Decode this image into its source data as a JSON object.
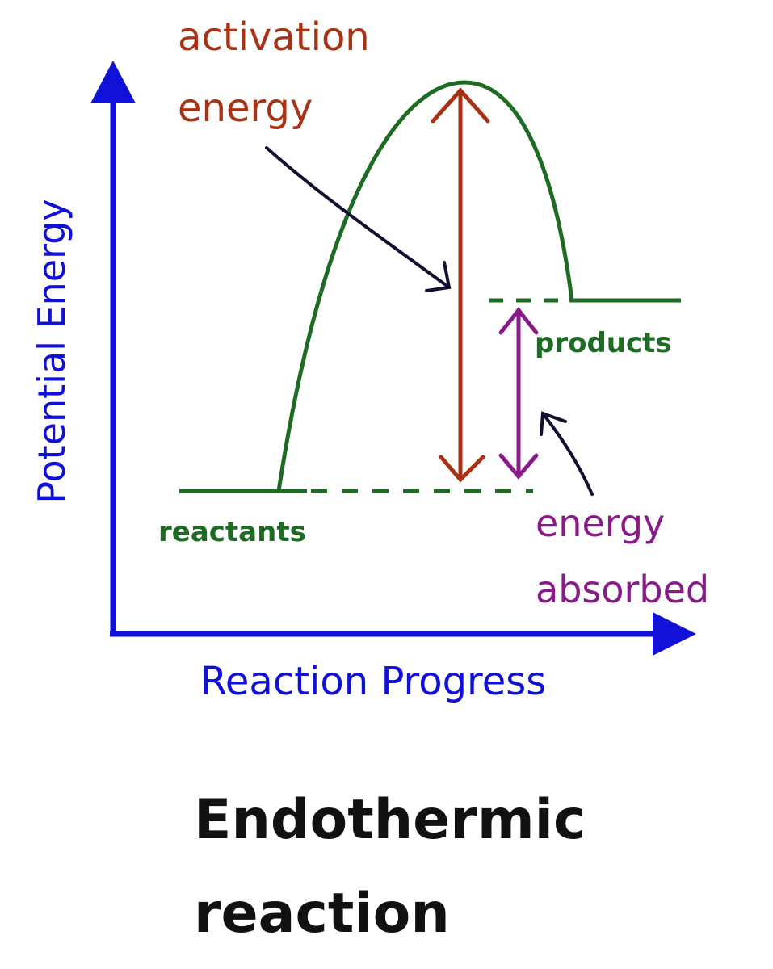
{
  "diagram": {
    "axis_y_label": "Potential Energy",
    "axis_x_label": "Reaction Progress",
    "activation_label_line1": "activation",
    "activation_label_line2": "energy",
    "products_label": "products",
    "reactants_label": "reactants",
    "absorbed_label_line1": "energy",
    "absorbed_label_line2": "absorbed",
    "title_line1": "Endothermic",
    "title_line2": "reaction"
  },
  "colors": {
    "axis": "#1010d8",
    "curve": "#1e6b24",
    "activation": "#a83214",
    "absorbed": "#8a1a8a",
    "pointer": "#101030",
    "title": "#111111"
  }
}
